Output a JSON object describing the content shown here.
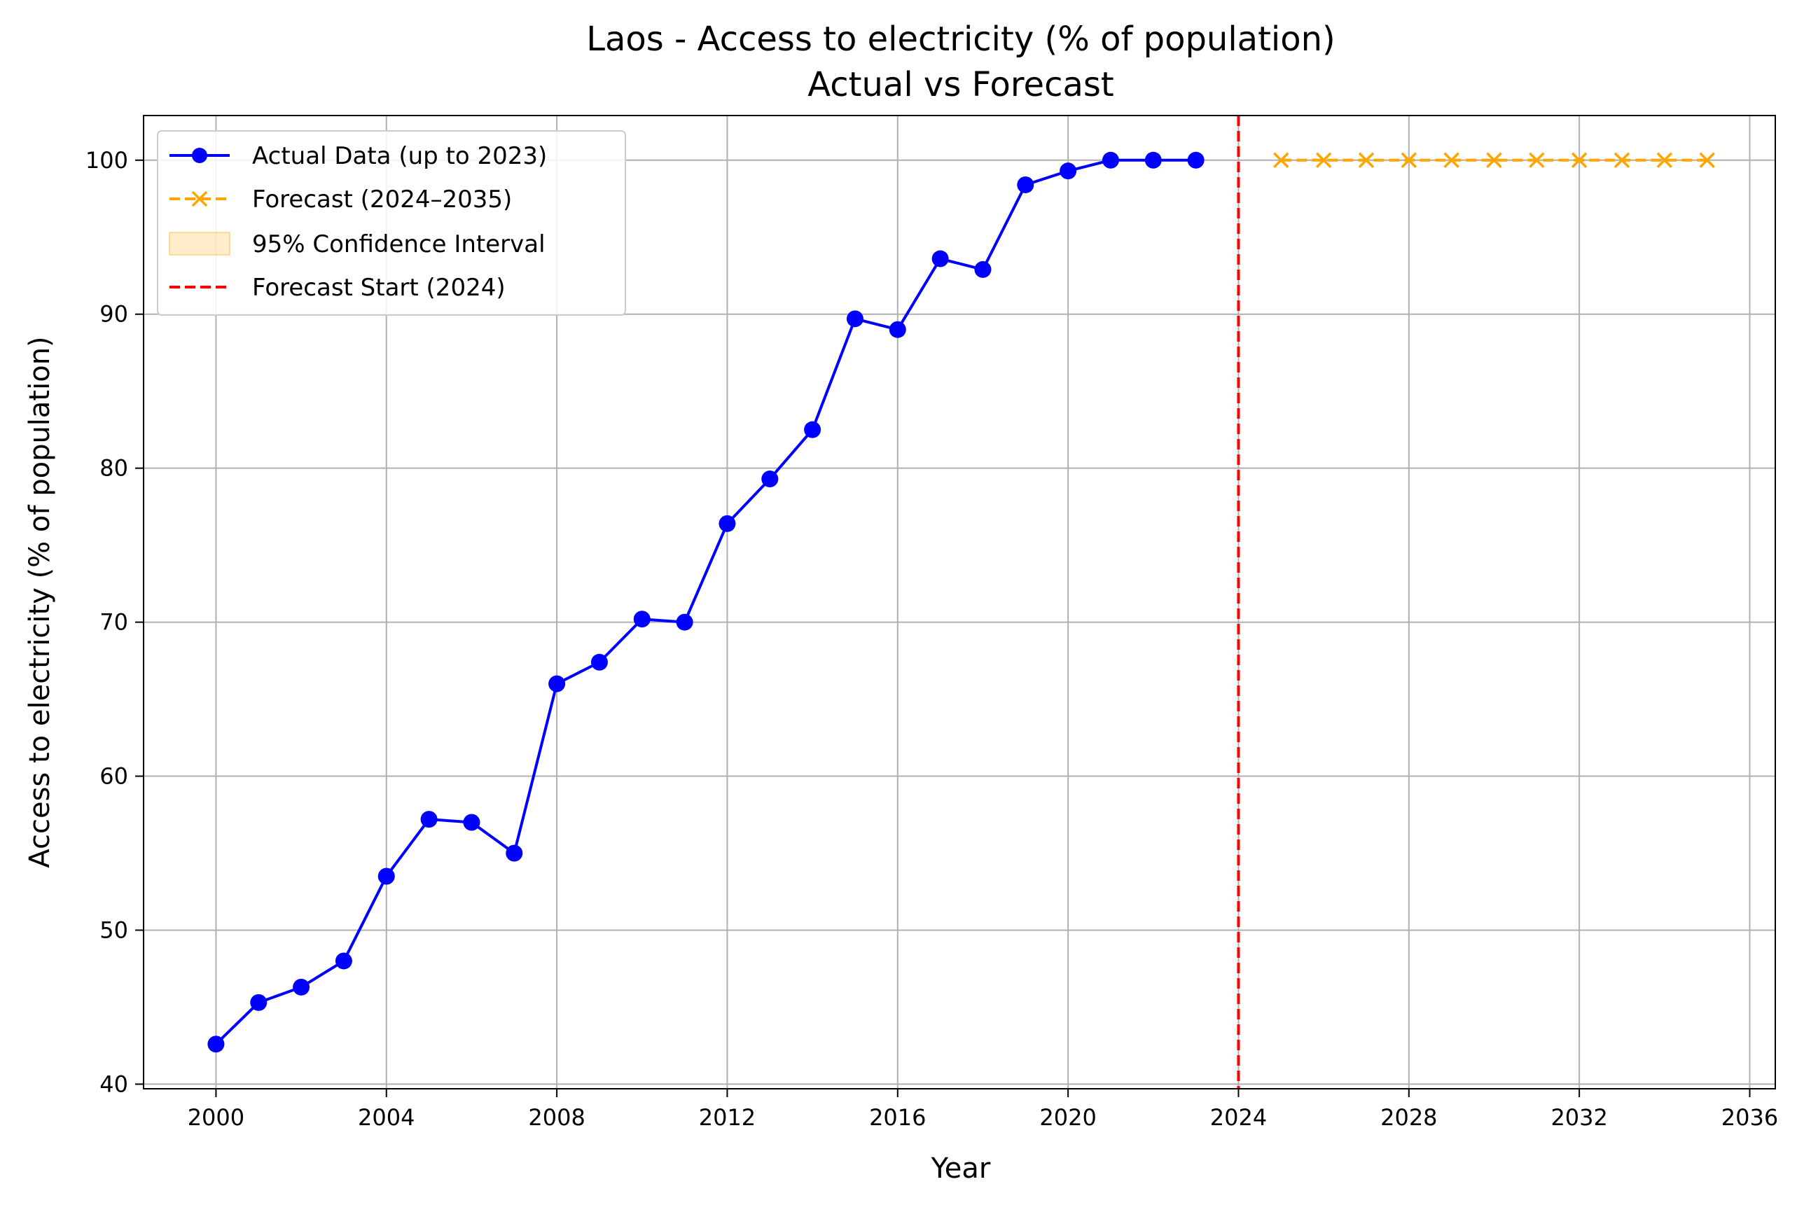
{
  "chart_data": {
    "type": "line",
    "title": "Laos - Access to electricity (% of population)",
    "subtitle": "Actual vs Forecast",
    "xlabel": "Year",
    "ylabel": "Access to electricity (% of population)",
    "xlim": [
      1998.3,
      2036.6
    ],
    "ylim": [
      39.7,
      102.9
    ],
    "x_ticks": [
      "2000",
      "2004",
      "2008",
      "2012",
      "2016",
      "2020",
      "2024",
      "2028",
      "2032",
      "2036"
    ],
    "y_ticks": [
      "40",
      "50",
      "60",
      "70",
      "80",
      "90",
      "100"
    ],
    "grid": true,
    "legend_position": "top-left",
    "series": [
      {
        "name": "Actual Data (up to 2023)",
        "color": "#0000ff",
        "style": "solid",
        "marker": "circle",
        "x": [
          2000,
          2001,
          2002,
          2003,
          2004,
          2005,
          2006,
          2007,
          2008,
          2009,
          2010,
          2011,
          2012,
          2013,
          2014,
          2015,
          2016,
          2017,
          2018,
          2019,
          2020,
          2021,
          2022,
          2023
        ],
        "values": [
          42.6,
          45.3,
          46.3,
          48.0,
          53.5,
          57.2,
          57.0,
          55.0,
          66.0,
          67.4,
          70.2,
          70.0,
          76.4,
          79.3,
          82.5,
          89.7,
          89.0,
          93.6,
          92.9,
          98.4,
          99.3,
          100.0,
          100.0,
          100.0
        ]
      },
      {
        "name": "Forecast (2024–2035)",
        "color": "#ffa500",
        "style": "dashed",
        "marker": "x",
        "x": [
          2025,
          2026,
          2027,
          2028,
          2029,
          2030,
          2031,
          2032,
          2033,
          2034,
          2035
        ],
        "values": [
          100.0,
          100.0,
          100.0,
          100.0,
          100.0,
          100.0,
          100.0,
          100.0,
          100.0,
          100.0,
          100.0
        ]
      }
    ],
    "confidence_interval": {
      "name": "95% Confidence Interval",
      "color": "#ffa500",
      "x": [
        2025,
        2026,
        2027,
        2028,
        2029,
        2030,
        2031,
        2032,
        2033,
        2034,
        2035
      ],
      "lower": [
        100.0,
        100.0,
        100.0,
        100.0,
        100.0,
        100.0,
        100.0,
        100.0,
        100.0,
        100.0,
        100.0
      ],
      "upper": [
        100.0,
        100.0,
        100.0,
        100.0,
        100.0,
        100.0,
        100.0,
        100.0,
        100.0,
        100.0,
        100.0
      ]
    },
    "vline": {
      "name": "Forecast Start (2024)",
      "x": 2024,
      "color": "#ff0000",
      "style": "dashed"
    },
    "legend": [
      "Actual Data (up to 2023)",
      "Forecast (2024–2035)",
      "95% Confidence Interval",
      "Forecast Start (2024)"
    ]
  }
}
